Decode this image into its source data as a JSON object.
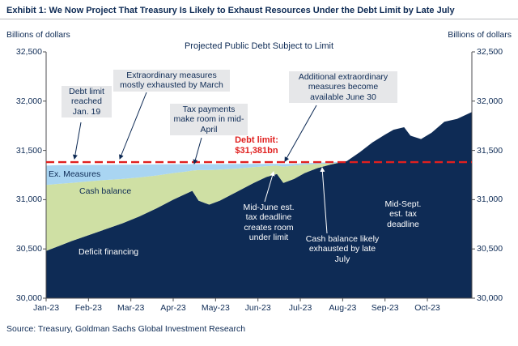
{
  "exhibit_title": "Exhibit 1: We Now Project That Treasury Is Likely to Exhaust Resources Under the Debt Limit by Late July",
  "y_axis_label_left": "Billions of dollars",
  "y_axis_label_right": "Billions of dollars",
  "source": "Source: Treasury, Goldman Sachs Global Investment Research",
  "series_labels": {
    "ex_measures": "Ex. Measures",
    "cash_balance": "Cash balance",
    "deficit_financing": "Deficit financing"
  },
  "annotations": [
    {
      "id": "debt-limit-reached",
      "text": "Debt limit reached Jan. 19"
    },
    {
      "id": "extraordinary-measures",
      "text": "Extraordinary measures mostly exhausted by March"
    },
    {
      "id": "tax-payments",
      "text": "Tax payments make room in mid-April"
    },
    {
      "id": "additional-measures",
      "text": "Additional extraordinary measures become available June 30"
    },
    {
      "id": "mid-june",
      "text": "Mid-June est. tax deadline creates room under limit"
    },
    {
      "id": "cash-exhausted",
      "text": "Cash balance likely exhausted by late July"
    },
    {
      "id": "mid-sept",
      "text": "Mid-Sept. est. tax deadline"
    }
  ],
  "debt_limit": {
    "label": "Debt limit:",
    "value_label": "$31,381bn",
    "value": 31381,
    "color": "#e0201f"
  },
  "chart_data": {
    "type": "area",
    "title": "Projected Public Debt Subject to Limit",
    "ylabel": "Billions of dollars",
    "ylim": [
      30000,
      32500
    ],
    "ytick_values": [
      30000,
      30500,
      31000,
      31500,
      32000,
      32500
    ],
    "ytick_labels": [
      "30,000",
      "30,500",
      "31,000",
      "31,500",
      "32,000",
      "32,500"
    ],
    "x_categories": [
      "Jan-23",
      "Feb-23",
      "Mar-23",
      "Apr-23",
      "May-23",
      "Jun-23",
      "Jul-23",
      "Aug-23",
      "Sep-23",
      "Oct-23"
    ],
    "x_max": 10.05,
    "x": [
      0,
      0.3,
      0.6,
      1.0,
      1.4,
      1.8,
      2.2,
      2.6,
      3.0,
      3.3,
      3.45,
      3.6,
      3.85,
      4.1,
      4.5,
      4.9,
      5.2,
      5.45,
      5.6,
      5.85,
      6.1,
      6.4,
      6.7,
      6.95,
      7.1,
      7.4,
      7.7,
      8.0,
      8.2,
      8.45,
      8.6,
      8.85,
      9.1,
      9.4,
      9.7,
      10.05
    ],
    "values_note": "cumulative stacked totals in billions of dollars",
    "series": [
      {
        "name": "Deficit financing",
        "color": "#0e2b55",
        "cumulative_values": [
          30480,
          30530,
          30580,
          30640,
          30700,
          30760,
          30830,
          30910,
          31000,
          31060,
          31090,
          30990,
          30950,
          30990,
          31080,
          31170,
          31230,
          31260,
          31170,
          31210,
          31270,
          31320,
          31355,
          31378,
          31392,
          31480,
          31580,
          31660,
          31710,
          31735,
          31650,
          31615,
          31680,
          31790,
          31820,
          31890
        ]
      },
      {
        "name": "Cash balance",
        "color": "#cfe0a4",
        "cumulative_values": [
          31150,
          31160,
          31170,
          31185,
          31200,
          31210,
          31225,
          31245,
          31270,
          31285,
          31295,
          31300,
          31300,
          31305,
          31315,
          31330,
          31340,
          31345,
          31335,
          31345,
          31355,
          31362,
          31368,
          31380,
          31392,
          31480,
          31580,
          31660,
          31710,
          31735,
          31650,
          31615,
          31680,
          31790,
          31820,
          31890
        ]
      },
      {
        "name": "Ex. Measures",
        "color": "#a9d5f2",
        "cumulative_values": [
          31345,
          31350,
          31352,
          31353,
          31354,
          31355,
          31356,
          31358,
          31360,
          31360,
          31361,
          31361,
          31361,
          31361,
          31362,
          31363,
          31363,
          31363,
          31362,
          31363,
          31370,
          31374,
          31378,
          31384,
          31392,
          31480,
          31580,
          31660,
          31710,
          31735,
          31650,
          31615,
          31680,
          31790,
          31820,
          31890
        ]
      }
    ],
    "debt_limit_line": {
      "value": 31381,
      "style": "dashed",
      "color": "#e0201f"
    },
    "legend_position": "none",
    "grid": false
  }
}
